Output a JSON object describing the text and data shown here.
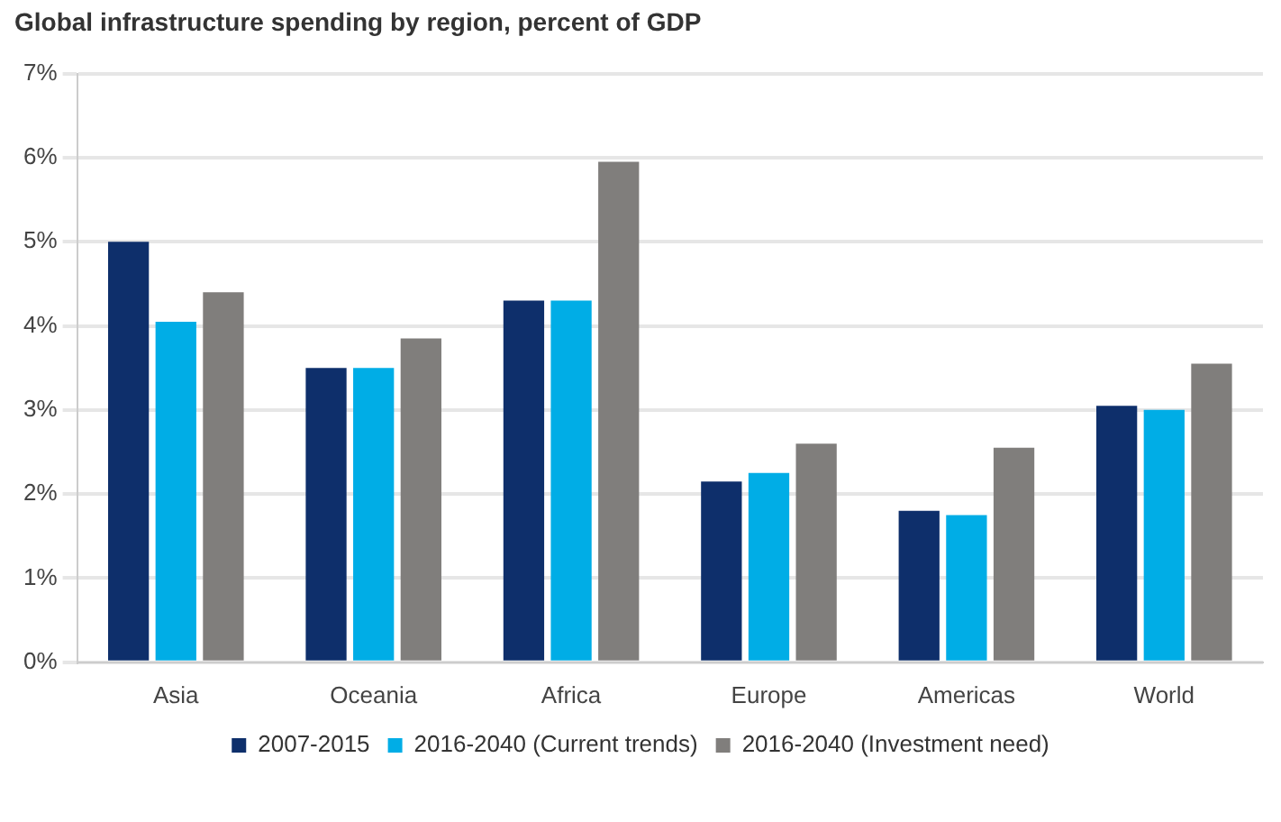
{
  "chart_data": {
    "type": "bar",
    "title": "Global infrastructure spending by region, percent of GDP",
    "categories": [
      "Asia",
      "Oceania",
      "Africa",
      "Europe",
      "Americas",
      "World"
    ],
    "series": [
      {
        "name": "2007-2015",
        "color": "#0e2f6b",
        "values": [
          5.0,
          3.5,
          4.3,
          2.15,
          1.8,
          3.05
        ]
      },
      {
        "name": "2016-2040 (Current trends)",
        "color": "#00ade6",
        "values": [
          4.05,
          3.5,
          4.3,
          2.25,
          1.75,
          3.0
        ]
      },
      {
        "name": "2016-2040 (Investment need)",
        "color": "#807e7c",
        "values": [
          4.4,
          3.85,
          5.95,
          2.6,
          2.55,
          3.55
        ]
      }
    ],
    "ylim": [
      0,
      7
    ],
    "yticks": [
      {
        "value": 0,
        "label": "0%"
      },
      {
        "value": 1,
        "label": "1%"
      },
      {
        "value": 2,
        "label": "2%"
      },
      {
        "value": 3,
        "label": "3%"
      },
      {
        "value": 4,
        "label": "4%"
      },
      {
        "value": 5,
        "label": "5%"
      },
      {
        "value": 6,
        "label": "6%"
      },
      {
        "value": 7,
        "label": "7%"
      }
    ],
    "grid": "y",
    "legend": "bottom"
  }
}
